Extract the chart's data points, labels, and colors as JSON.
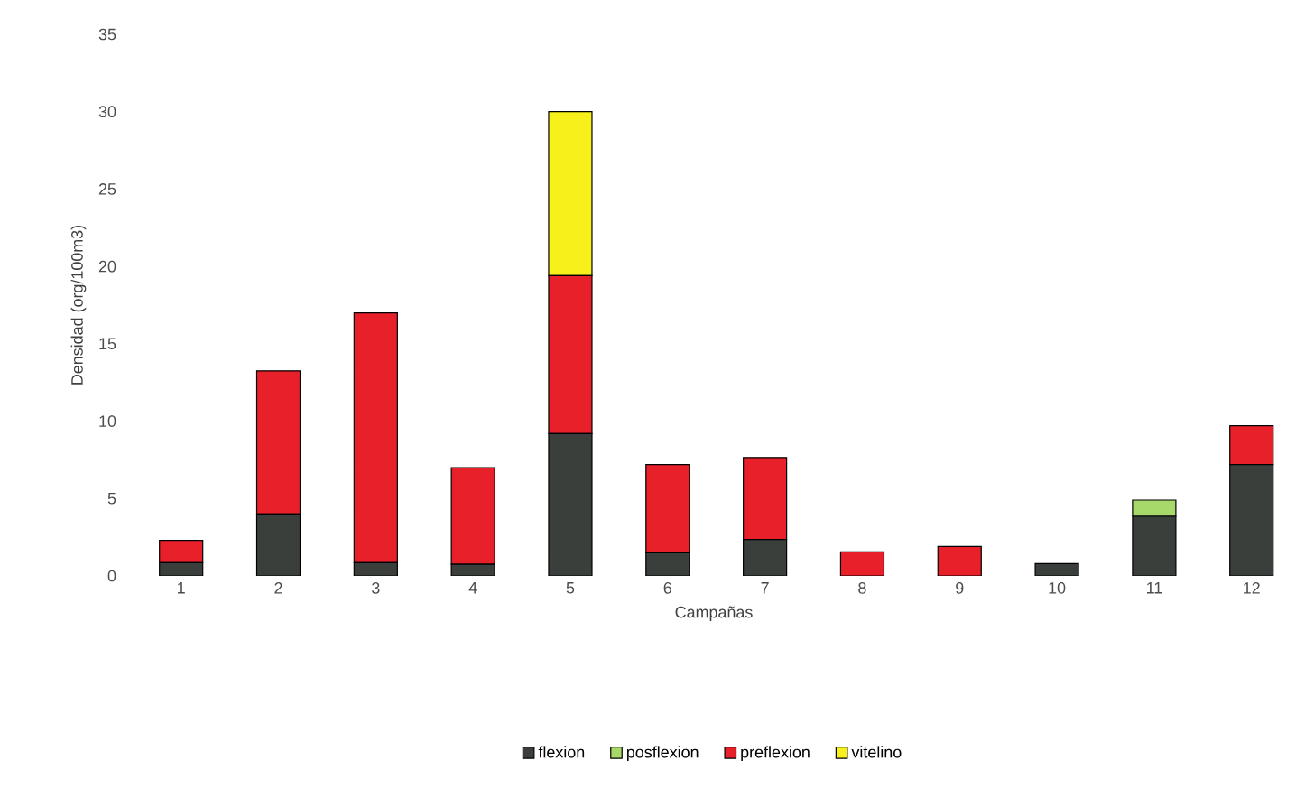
{
  "chart_data": {
    "type": "bar",
    "stacked": true,
    "xlabel": "Campañas",
    "ylabel": "Densidad (org/100m3)",
    "categories": [
      "1",
      "2",
      "3",
      "4",
      "5",
      "6",
      "7",
      "8",
      "9",
      "10",
      "11",
      "12"
    ],
    "series": [
      {
        "name": "flexion",
        "color": "#3a3f3c",
        "values": [
          0.85,
          4.0,
          0.85,
          0.75,
          9.2,
          1.5,
          2.35,
          0,
          0,
          0.8,
          3.85,
          7.2
        ]
      },
      {
        "name": "posflexion",
        "color": "#a6d86a",
        "values": [
          0,
          0,
          0,
          0,
          0,
          0,
          0,
          0,
          0,
          0,
          1.05,
          0
        ]
      },
      {
        "name": "preflexion",
        "color": "#e8202a",
        "values": [
          1.45,
          9.25,
          16.15,
          6.25,
          10.2,
          5.7,
          5.3,
          1.55,
          1.9,
          0,
          0,
          2.5
        ]
      },
      {
        "name": "vitelino",
        "color": "#f7f01a",
        "values": [
          0,
          0,
          0,
          0,
          10.6,
          0,
          0,
          0,
          0,
          0,
          0,
          0
        ]
      }
    ],
    "ylim": [
      0,
      35
    ],
    "yticks": [
      0,
      5,
      10,
      15,
      20,
      25,
      30,
      35
    ],
    "grid": false,
    "legend": "bottom"
  }
}
